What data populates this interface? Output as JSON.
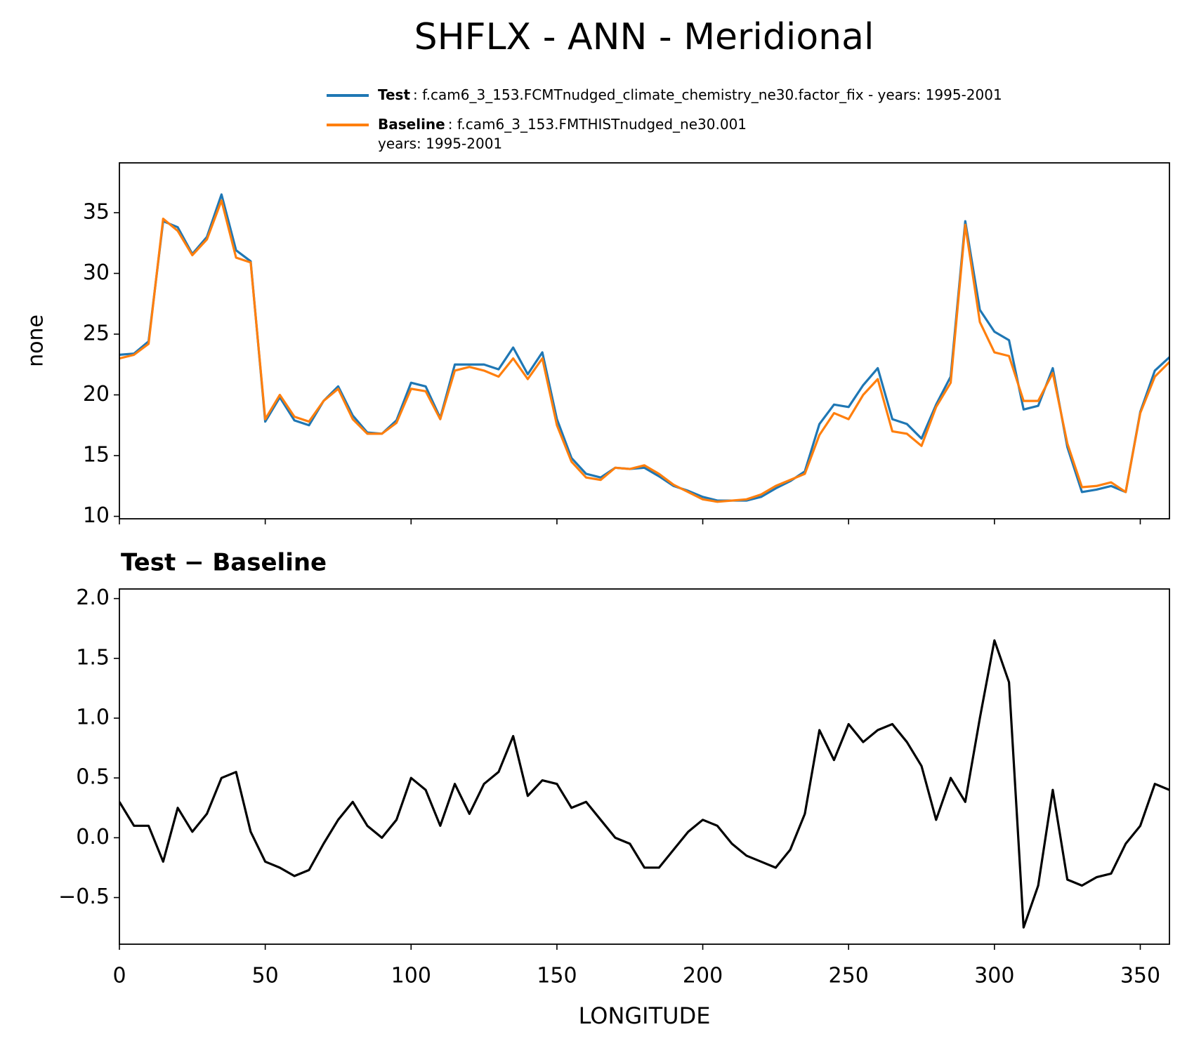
{
  "title": "SHFLX - ANN - Meridional",
  "chart_data": [
    {
      "type": "line",
      "ylabel": "none",
      "xlim": [
        0,
        360
      ],
      "ylim": [
        9.8,
        39.1
      ],
      "xticks": [
        0,
        50,
        100,
        150,
        200,
        250,
        300,
        350
      ],
      "xtick_labels": false,
      "yticks": [
        10,
        15,
        20,
        25,
        30,
        35
      ],
      "legend": "above",
      "x": [
        0,
        5,
        10,
        15,
        20,
        25,
        30,
        35,
        40,
        45,
        50,
        55,
        60,
        65,
        70,
        75,
        80,
        85,
        90,
        95,
        100,
        105,
        110,
        115,
        120,
        125,
        130,
        135,
        140,
        145,
        150,
        155,
        160,
        165,
        170,
        175,
        180,
        185,
        190,
        195,
        200,
        205,
        210,
        215,
        220,
        225,
        230,
        235,
        240,
        245,
        250,
        255,
        260,
        265,
        270,
        275,
        280,
        285,
        290,
        295,
        300,
        305,
        310,
        315,
        320,
        325,
        330,
        335,
        340,
        345,
        350,
        355,
        360
      ],
      "series": [
        {
          "name": "Test",
          "color": "#1f77b4",
          "label_lines": [
            ": f.cam6_3_153.FCMTnudged_climate_chemistry_ne30.factor_fix - years: 1995-2001"
          ],
          "values": [
            23.3,
            23.4,
            24.4,
            34.3,
            33.8,
            31.6,
            33.0,
            36.5,
            31.9,
            31.0,
            17.8,
            19.8,
            17.9,
            17.5,
            19.5,
            20.7,
            18.3,
            16.9,
            16.8,
            17.9,
            21.0,
            20.7,
            18.1,
            22.5,
            22.5,
            22.5,
            22.1,
            23.9,
            21.7,
            23.5,
            18.0,
            14.8,
            13.5,
            13.2,
            14.0,
            13.9,
            14.0,
            13.3,
            12.5,
            12.1,
            11.6,
            11.3,
            11.3,
            11.3,
            11.6,
            12.3,
            12.9,
            13.7,
            17.6,
            19.2,
            19.0,
            20.8,
            22.2,
            18.0,
            17.6,
            16.4,
            19.2,
            21.5,
            34.3,
            27.0,
            25.2,
            24.5,
            18.8,
            19.1,
            22.2,
            15.7,
            12.0,
            12.2,
            12.5,
            12.0,
            18.6,
            22.0,
            23.1
          ]
        },
        {
          "name": "Baseline",
          "color": "#ff7f0e",
          "label_lines": [
            ": f.cam6_3_153.FMTHISTnudged_ne30.001",
            "years: 1995-2001"
          ],
          "values": [
            23.0,
            23.3,
            24.2,
            34.5,
            33.5,
            31.5,
            32.8,
            36.0,
            31.3,
            30.9,
            18.0,
            20.0,
            18.2,
            17.8,
            19.5,
            20.5,
            18.0,
            16.8,
            16.8,
            17.7,
            20.5,
            20.3,
            18.0,
            22.0,
            22.3,
            22.0,
            21.5,
            23.0,
            21.3,
            23.0,
            17.5,
            14.5,
            13.2,
            13.0,
            14.0,
            13.9,
            14.2,
            13.5,
            12.6,
            12.0,
            11.4,
            11.2,
            11.3,
            11.4,
            11.8,
            12.5,
            13.0,
            13.5,
            16.7,
            18.5,
            18.0,
            20.0,
            21.3,
            17.0,
            16.8,
            15.8,
            19.0,
            21.0,
            34.0,
            26.0,
            23.5,
            23.2,
            19.5,
            19.5,
            21.8,
            16.0,
            12.4,
            12.5,
            12.8,
            12.0,
            18.5,
            21.5,
            22.7
          ]
        }
      ]
    },
    {
      "type": "line",
      "title": "Test − Baseline",
      "xlabel": "LONGITUDE",
      "xlim": [
        0,
        360
      ],
      "ylim": [
        -0.89,
        2.08
      ],
      "xticks": [
        0,
        50,
        100,
        150,
        200,
        250,
        300,
        350
      ],
      "xtick_labels": true,
      "yticks": [
        {
          "value": -0.5,
          "label": "−0.5"
        },
        {
          "value": 0,
          "label": "0.0"
        },
        {
          "value": 0.5,
          "label": "0.5"
        },
        {
          "value": 1,
          "label": "1.0"
        },
        {
          "value": 1.5,
          "label": "1.5"
        },
        {
          "value": 2,
          "label": "2.0"
        }
      ],
      "x": [
        0,
        5,
        10,
        15,
        20,
        25,
        30,
        35,
        40,
        45,
        50,
        55,
        60,
        65,
        70,
        75,
        80,
        85,
        90,
        95,
        100,
        105,
        110,
        115,
        120,
        125,
        130,
        135,
        140,
        145,
        150,
        155,
        160,
        165,
        170,
        175,
        180,
        185,
        190,
        195,
        200,
        205,
        210,
        215,
        220,
        225,
        230,
        235,
        240,
        245,
        250,
        255,
        260,
        265,
        270,
        275,
        280,
        285,
        290,
        295,
        300,
        305,
        310,
        315,
        320,
        325,
        330,
        335,
        340,
        345,
        350,
        355,
        360
      ],
      "series": [
        {
          "color": "#000000",
          "values": [
            0.3,
            0.1,
            0.1,
            -0.2,
            0.25,
            0.05,
            0.2,
            0.5,
            0.55,
            0.05,
            -0.2,
            -0.25,
            -0.32,
            -0.27,
            -0.05,
            0.15,
            0.3,
            0.1,
            0.0,
            0.15,
            0.5,
            0.4,
            0.1,
            0.45,
            0.2,
            0.45,
            0.55,
            0.85,
            0.35,
            0.48,
            0.45,
            0.25,
            0.3,
            0.15,
            0.0,
            -0.05,
            -0.25,
            -0.25,
            -0.1,
            0.05,
            0.15,
            0.1,
            -0.05,
            -0.15,
            -0.2,
            -0.25,
            -0.1,
            0.2,
            0.9,
            0.65,
            0.95,
            0.8,
            0.9,
            0.95,
            0.8,
            0.6,
            0.15,
            0.5,
            0.3,
            1.0,
            1.65,
            1.3,
            -0.75,
            -0.4,
            0.4,
            -0.35,
            -0.4,
            -0.33,
            -0.3,
            -0.05,
            0.1,
            0.45,
            0.4
          ]
        }
      ]
    }
  ]
}
